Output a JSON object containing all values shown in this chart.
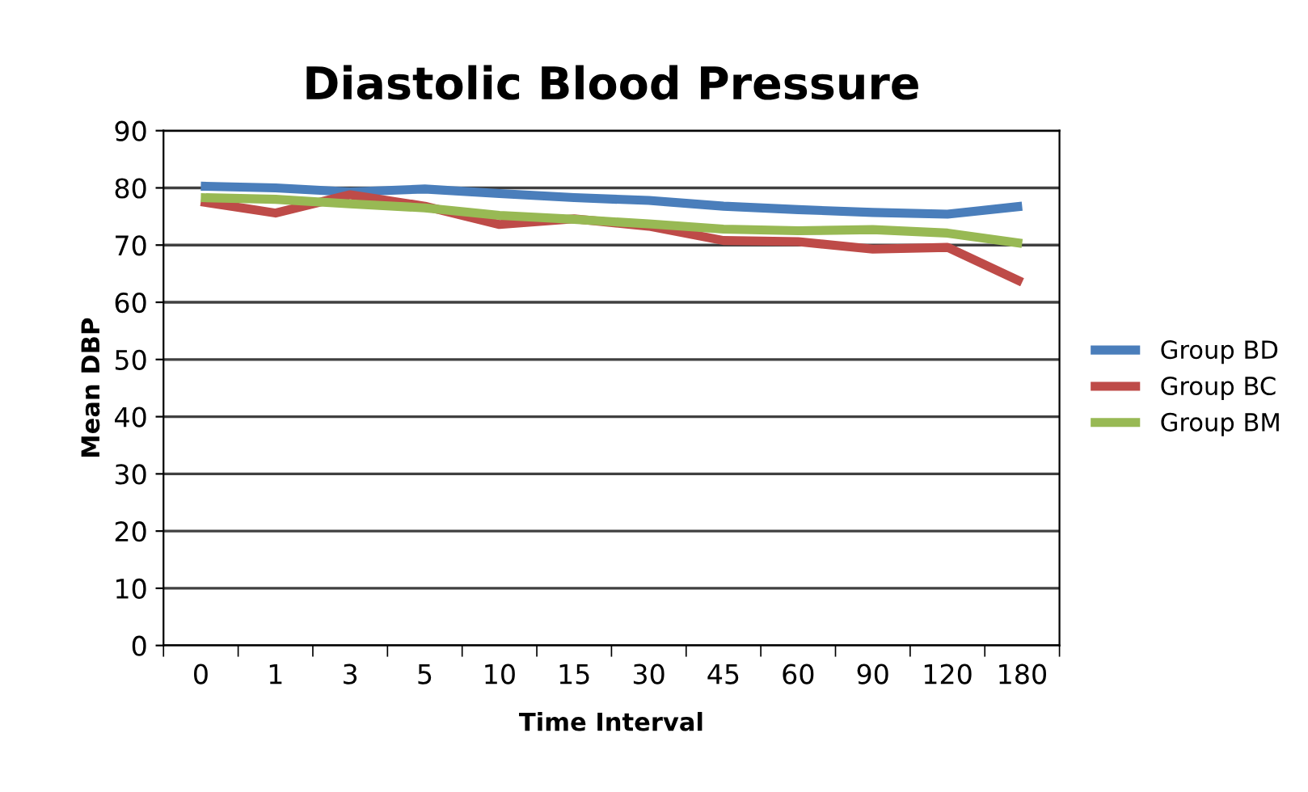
{
  "chart_data": {
    "type": "line",
    "title": "Diastolic Blood Pressure",
    "xlabel": "Time Interval",
    "ylabel": "Mean DBP",
    "categories": [
      "0",
      "1",
      "3",
      "5",
      "10",
      "15",
      "30",
      "45",
      "60",
      "90",
      "120",
      "180"
    ],
    "series": [
      {
        "name": "Group BD",
        "color": "#4a7ebb",
        "values": [
          80.3,
          80,
          79.3,
          79.8,
          79,
          78.3,
          77.8,
          76.8,
          76.2,
          75.7,
          75.4,
          76.8
        ]
      },
      {
        "name": "Group BC",
        "color": "#be4b48",
        "values": [
          77.6,
          75.6,
          78.8,
          76.8,
          73.6,
          74.6,
          73.3,
          70.8,
          70.6,
          69.3,
          69.6,
          63.5
        ]
      },
      {
        "name": "Group BM",
        "color": "#98b954",
        "values": [
          78.3,
          78,
          77.2,
          76.5,
          75.2,
          74.5,
          73.7,
          72.8,
          72.5,
          72.7,
          72.1,
          70.3
        ]
      }
    ],
    "ylim": [
      0,
      90
    ],
    "yticks": [
      0,
      10,
      20,
      30,
      40,
      50,
      60,
      70,
      80,
      90
    ],
    "grid": "y",
    "legend": "right",
    "marker": "none",
    "line_style": "solid"
  }
}
